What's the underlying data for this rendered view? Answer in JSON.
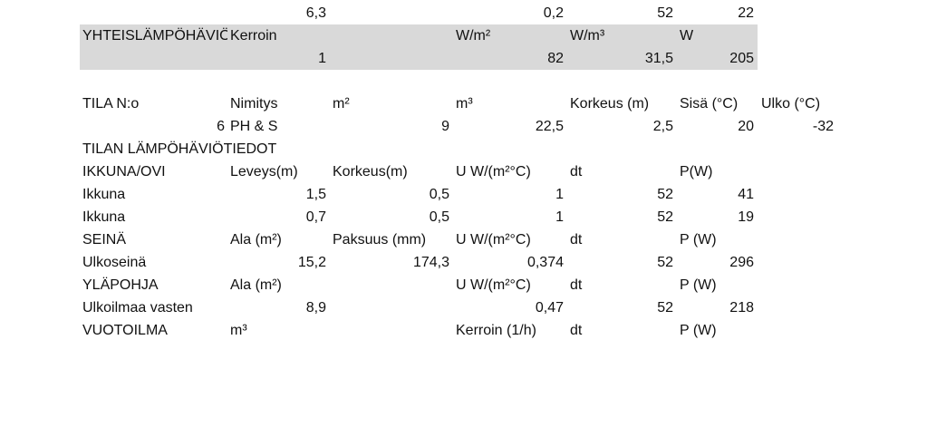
{
  "top_row": {
    "b": "6,3",
    "e": "0,2",
    "f": "52",
    "g": "22"
  },
  "summary": {
    "label": "YHTEISLÄMPÖHÄVIÖT",
    "h_coef": "Kerroin",
    "h_wm2": "W/m²",
    "h_wm3": "W/m³",
    "h_w": "W",
    "v_coef": "1",
    "v_wm2": "82",
    "v_wm3": "31,5",
    "v_w": "205"
  },
  "room_header": {
    "tila": "TILA N:o",
    "nimitys": "Nimitys",
    "m2": "m²",
    "m3": "m³",
    "korkeus": "Korkeus (m)",
    "sisa": "Sisä (°C)",
    "ulko": "Ulko (°C)"
  },
  "room": {
    "no": "6",
    "name": "PH & S",
    "m2": "9",
    "m3": "22,5",
    "korkeus": "2,5",
    "sisa": "20",
    "ulko": "-32"
  },
  "section_title": "TILAN LÄMPÖHÄVIÖTIEDOT",
  "window_header": {
    "label": "IKKUNA/OVI",
    "leveys": "Leveys(m)",
    "korkeus": "Korkeus(m)",
    "u": "U W/(m²°C)",
    "dt": "dt",
    "p": "P(W)"
  },
  "windows": [
    {
      "label": "Ikkuna",
      "leveys": "1,5",
      "korkeus": "0,5",
      "u": "1",
      "dt": "52",
      "p": "41"
    },
    {
      "label": "Ikkuna",
      "leveys": "0,7",
      "korkeus": "0,5",
      "u": "1",
      "dt": "52",
      "p": "19"
    }
  ],
  "wall_header": {
    "label": "SEINÄ",
    "ala": "Ala (m²)",
    "paksuus": "Paksuus (mm)",
    "u": "U W/(m²°C)",
    "dt": "dt",
    "p": "P (W)"
  },
  "wall": {
    "label": "Ulkoseinä",
    "ala": "15,2",
    "paksuus": "174,3",
    "u": "0,374",
    "dt": "52",
    "p": "296"
  },
  "roof_header": {
    "label": "YLÄPOHJA",
    "ala": "Ala (m²)",
    "u": "U W/(m²°C)",
    "dt": "dt",
    "p": "P (W)"
  },
  "roof": {
    "label": "Ulkoilmaa vasten",
    "ala": "8,9",
    "u": "0,47",
    "dt": "52",
    "p": "218"
  },
  "leak_header": {
    "label": "VUOTOILMA",
    "m3": "m³",
    "kerroin": "Kerroin (1/h)",
    "dt": "dt",
    "p": "P (W)"
  }
}
